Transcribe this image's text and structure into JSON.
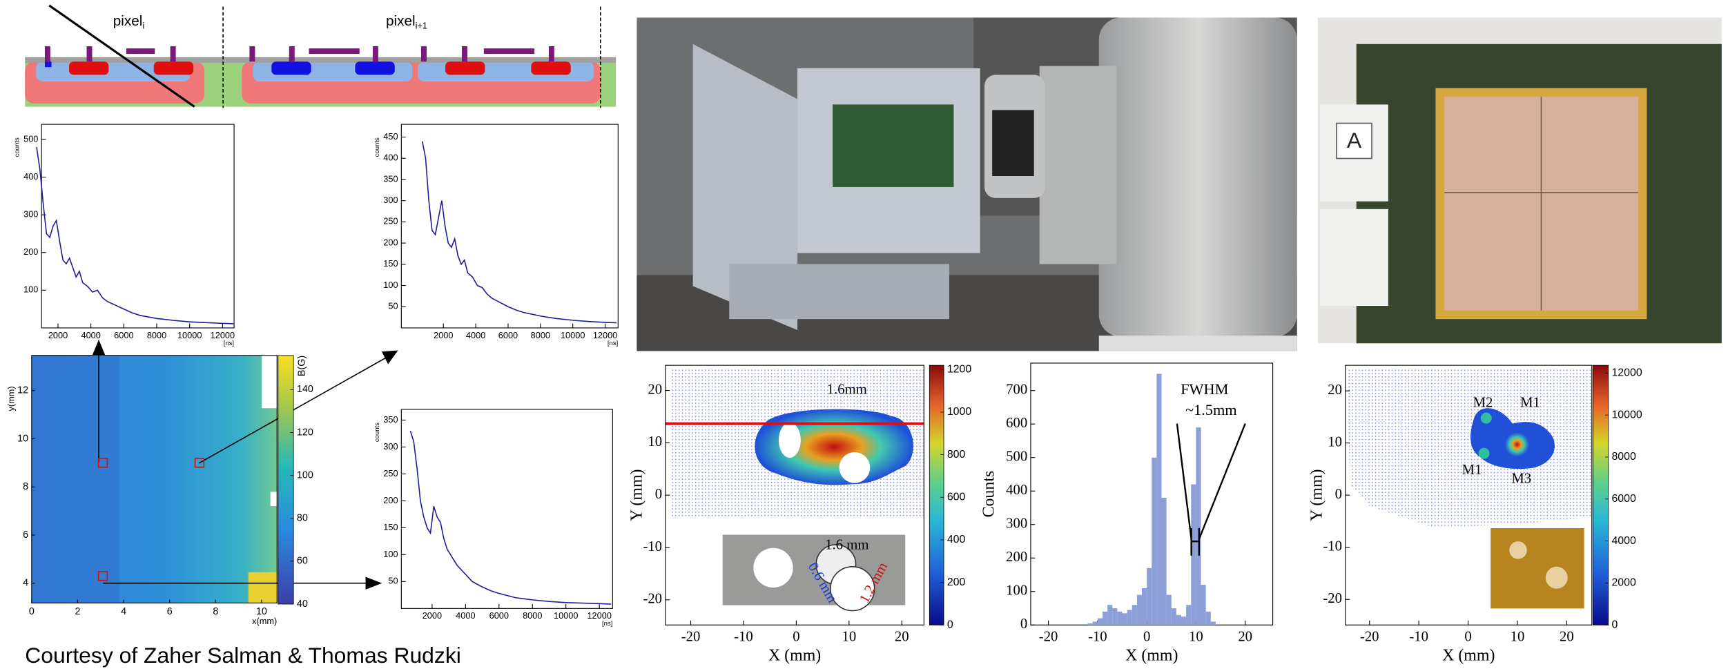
{
  "diagram": {
    "labels": [
      {
        "text": "pixel",
        "sub": "i"
      },
      {
        "text": "pixel",
        "sub": "i+1"
      }
    ]
  },
  "histograms": [
    {
      "type": "line",
      "ylabel": "counts",
      "xlabel": "[ns]",
      "color": "#1c1c9a",
      "xlim": [
        1000,
        12700
      ],
      "ylim": [
        0,
        540
      ],
      "xticks": [
        2000,
        4000,
        6000,
        8000,
        10000,
        12000
      ],
      "yticks": [
        100,
        200,
        300,
        400,
        500
      ],
      "x": [
        700,
        900,
        1100,
        1300,
        1500,
        1700,
        1900,
        2100,
        2300,
        2500,
        2700,
        2900,
        3100,
        3300,
        3500,
        3800,
        4100,
        4400,
        4700,
        5000,
        5500,
        6000,
        6500,
        7000,
        8000,
        9000,
        10000,
        11000,
        12000,
        12700
      ],
      "values": [
        480,
        420,
        330,
        250,
        240,
        270,
        285,
        230,
        180,
        170,
        185,
        160,
        135,
        150,
        120,
        110,
        95,
        100,
        80,
        70,
        60,
        50,
        40,
        33,
        25,
        20,
        16,
        14,
        12,
        11
      ]
    },
    {
      "type": "line",
      "ylabel": "counts",
      "xlabel": "[ns]",
      "color": "#1c1c9a",
      "xlim": [
        -600,
        12800
      ],
      "ylim": [
        0,
        480
      ],
      "xticks": [
        2000,
        4000,
        6000,
        8000,
        10000,
        12000
      ],
      "yticks": [
        50,
        100,
        150,
        200,
        250,
        300,
        350,
        400,
        450
      ],
      "x": [
        700,
        900,
        1100,
        1300,
        1500,
        1700,
        1900,
        2100,
        2300,
        2500,
        2700,
        2900,
        3100,
        3300,
        3500,
        3800,
        4100,
        4400,
        4700,
        5000,
        5500,
        6000,
        6500,
        7000,
        8000,
        9000,
        10000,
        11000,
        12000,
        12700
      ],
      "values": [
        440,
        400,
        300,
        230,
        220,
        260,
        300,
        240,
        200,
        190,
        210,
        170,
        150,
        160,
        130,
        120,
        100,
        95,
        80,
        70,
        60,
        50,
        42,
        36,
        28,
        22,
        18,
        15,
        13,
        12
      ]
    },
    {
      "type": "line",
      "ylabel": "counts",
      "xlabel": "[ns]",
      "color": "#1c1c9a",
      "xlim": [
        160,
        12790
      ],
      "ylim": [
        0,
        370
      ],
      "xticks": [
        2000,
        4000,
        6000,
        8000,
        10000,
        12000
      ],
      "yticks": [
        50,
        100,
        150,
        200,
        250,
        300,
        350
      ],
      "x": [
        700,
        900,
        1100,
        1300,
        1500,
        1700,
        1900,
        2100,
        2300,
        2500,
        2700,
        2900,
        3100,
        3300,
        3500,
        3800,
        4100,
        4400,
        4700,
        5000,
        5500,
        6000,
        6500,
        7000,
        8000,
        9000,
        10000,
        11000,
        12000,
        12700
      ],
      "values": [
        330,
        310,
        260,
        200,
        170,
        150,
        140,
        190,
        170,
        160,
        130,
        110,
        100,
        90,
        80,
        70,
        60,
        50,
        45,
        40,
        33,
        28,
        24,
        20,
        16,
        13,
        11,
        10,
        9,
        8
      ]
    }
  ],
  "field_map": {
    "type": "heatmap",
    "xlabel": "x(mm)",
    "ylabel": "y(mm)",
    "colorbar_label": "B(G)",
    "xlim": [
      0,
      10.67
    ],
    "ylim": [
      3.18,
      13.46
    ],
    "xticks": [
      0,
      2,
      4,
      6,
      8,
      10
    ],
    "yticks": [
      4,
      6,
      8,
      10,
      12
    ],
    "colorbar_lim": [
      40,
      156
    ],
    "colorbar_ticks": [
      40,
      60,
      80,
      100,
      120,
      140
    ],
    "markers": {
      "x": [
        3.1,
        7.3,
        3.1
      ],
      "y": [
        9,
        9,
        4.3
      ]
    }
  },
  "beam_profiles": [
    {
      "type": "scatter",
      "xlabel": "X (mm)",
      "ylabel": "Y (mm)",
      "xlim": [
        -24.8,
        24.2
      ],
      "ylim": [
        -24.8,
        24.8
      ],
      "xticks": [
        -20,
        -10,
        0,
        10,
        20
      ],
      "yticks": [
        -20,
        -10,
        0,
        10,
        20
      ],
      "colorbar_lim": [
        0,
        1220
      ],
      "colorbar_ticks": [
        0,
        200,
        400,
        600,
        800,
        1000,
        1200
      ],
      "annotations": [
        "1.6mm",
        "1.6 mm",
        "0.6 mm",
        "1.2 mm"
      ]
    },
    {
      "type": "scatter",
      "xlabel": "X (mm)",
      "ylabel": "Y (mm)",
      "xlim": [
        -24.9,
        25.1
      ],
      "ylim": [
        -24.9,
        24.9
      ],
      "xticks": [
        -20,
        -10,
        0,
        10,
        20
      ],
      "yticks": [
        -20,
        -10,
        0,
        10,
        20
      ],
      "colorbar_lim": [
        0,
        12368
      ],
      "colorbar_ticks": [
        0,
        2000,
        4000,
        6000,
        8000,
        10000,
        12000
      ],
      "annotations": [
        "M2",
        "M1",
        "M1",
        "M3"
      ]
    }
  ],
  "beam_histogram": {
    "type": "histogram",
    "xlabel": "X (mm)",
    "ylabel": "Counts",
    "color": "#8c9fd8",
    "xlim": [
      -23.6,
      25.6
    ],
    "ylim": [
      0,
      782
    ],
    "xticks": [
      -20,
      -10,
      0,
      10,
      20
    ],
    "yticks": [
      0,
      100,
      200,
      300,
      400,
      500,
      600,
      700
    ],
    "bins": [
      -12,
      -11,
      -10,
      -9,
      -8,
      -7,
      -6,
      -5,
      -4,
      -3,
      -2,
      -1,
      0,
      1,
      2,
      3,
      4,
      5,
      6,
      7,
      8,
      9,
      10,
      11,
      12,
      13,
      14
    ],
    "values": [
      5,
      10,
      20,
      40,
      60,
      50,
      40,
      35,
      45,
      60,
      90,
      110,
      170,
      500,
      750,
      380,
      90,
      50,
      30,
      25,
      60,
      420,
      590,
      120,
      40,
      10
    ],
    "annotations": [
      "FWHM",
      "~1.5mm"
    ]
  },
  "photo_label": "A",
  "caption": "Courtesy of Zaher Salman & Thomas Rudzki"
}
